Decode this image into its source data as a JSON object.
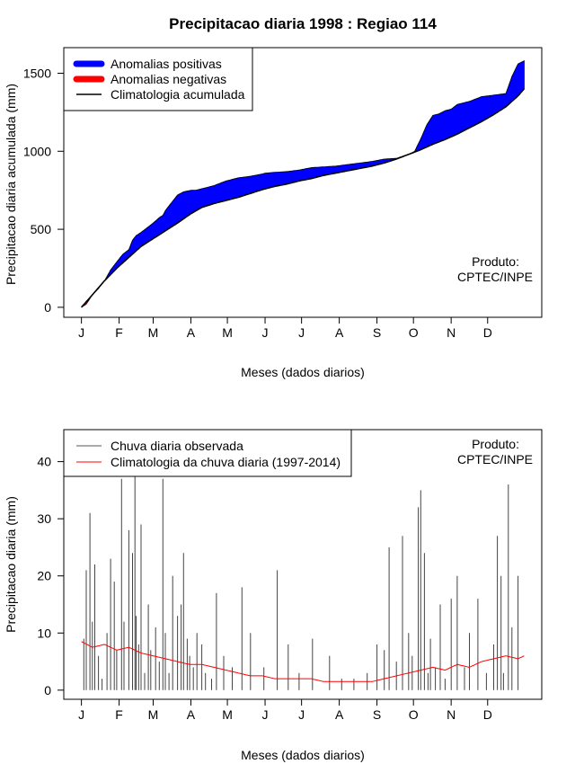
{
  "chart_data": [
    {
      "type": "area",
      "title": "Precipitacao diaria 1998 : Regiao 114",
      "xlabel": "Meses (dados diarios)",
      "ylabel": "Precipitacao diaria acumulada (mm)",
      "xlim": [
        1,
        365
      ],
      "ylim": [
        0,
        1600
      ],
      "yticks": [
        0,
        500,
        1000,
        1500
      ],
      "month_labels": [
        "J",
        "F",
        "M",
        "A",
        "M",
        "J",
        "J",
        "A",
        "S",
        "O",
        "N",
        "D"
      ],
      "month_days": [
        1,
        32,
        60,
        91,
        121,
        152,
        182,
        213,
        244,
        274,
        305,
        335
      ],
      "legend": {
        "position": "top-left",
        "entries": [
          {
            "label": "Anomalias positivas",
            "color": "#0000ff"
          },
          {
            "label": "Anomalias negativas",
            "color": "#ff0000"
          },
          {
            "label": "Climatologia acumulada",
            "color": "#000000"
          }
        ]
      },
      "annotation": [
        "Produto:",
        "CPTEC/INPE"
      ],
      "series": [
        {
          "name": "Observada acumulada",
          "day": [
            1,
            5,
            10,
            15,
            20,
            25,
            30,
            35,
            40,
            43,
            46,
            50,
            55,
            60,
            65,
            68,
            70,
            73,
            75,
            80,
            85,
            91,
            95,
            100,
            110,
            120,
            130,
            140,
            150,
            152,
            160,
            170,
            180,
            190,
            200,
            210,
            220,
            230,
            240,
            250,
            260,
            270,
            275,
            280,
            285,
            290,
            295,
            300,
            305,
            310,
            320,
            330,
            340,
            350,
            355,
            360,
            365
          ],
          "values": [
            0,
            20,
            80,
            120,
            170,
            240,
            290,
            340,
            370,
            430,
            460,
            480,
            510,
            540,
            575,
            590,
            620,
            650,
            670,
            720,
            740,
            750,
            750,
            760,
            780,
            810,
            830,
            840,
            855,
            860,
            865,
            870,
            880,
            895,
            900,
            905,
            915,
            925,
            935,
            950,
            955,
            980,
            1000,
            1080,
            1170,
            1230,
            1240,
            1260,
            1270,
            1300,
            1320,
            1350,
            1360,
            1370,
            1480,
            1560,
            1580
          ]
        },
        {
          "name": "Climatologia acumulada",
          "day": [
            1,
            10,
            20,
            30,
            40,
            50,
            60,
            70,
            80,
            91,
            100,
            110,
            120,
            130,
            140,
            150,
            160,
            170,
            180,
            190,
            200,
            210,
            220,
            230,
            240,
            250,
            260,
            270,
            280,
            290,
            300,
            310,
            320,
            330,
            340,
            350,
            360,
            365
          ],
          "values": [
            0,
            80,
            170,
            250,
            320,
            390,
            440,
            490,
            540,
            600,
            640,
            665,
            685,
            705,
            730,
            755,
            775,
            790,
            810,
            825,
            845,
            860,
            875,
            890,
            905,
            925,
            950,
            980,
            1010,
            1045,
            1075,
            1110,
            1150,
            1190,
            1235,
            1285,
            1355,
            1400
          ]
        }
      ]
    },
    {
      "type": "bar",
      "xlabel": "Meses (dados diarios)",
      "ylabel": "Precipitacao diaria (mm)",
      "xlim": [
        1,
        365
      ],
      "ylim": [
        0,
        45
      ],
      "yticks": [
        0,
        10,
        20,
        30,
        40
      ],
      "month_labels": [
        "J",
        "F",
        "M",
        "A",
        "M",
        "J",
        "J",
        "A",
        "S",
        "O",
        "N",
        "D"
      ],
      "month_days": [
        1,
        32,
        60,
        91,
        121,
        152,
        182,
        213,
        244,
        274,
        305,
        335
      ],
      "legend": {
        "position": "top-left",
        "entries": [
          {
            "label": "Chuva diaria observada",
            "color": "#555555"
          },
          {
            "label": "Climatologia da chuva diaria (1997-2014)",
            "color": "#ff0000"
          }
        ]
      },
      "annotation": [
        "Produto:",
        "CPTEC/INPE"
      ],
      "series": [
        {
          "name": "Chuva diaria observada",
          "day": [
            3,
            5,
            8,
            10,
            12,
            15,
            18,
            22,
            25,
            28,
            30,
            34,
            36,
            40,
            43,
            45,
            46,
            48,
            50,
            53,
            56,
            58,
            62,
            65,
            68,
            70,
            73,
            76,
            80,
            83,
            85,
            88,
            90,
            93,
            96,
            100,
            103,
            108,
            112,
            118,
            125,
            133,
            140,
            151,
            162,
            171,
            180,
            191,
            205,
            215,
            225,
            236,
            244,
            250,
            254,
            260,
            265,
            270,
            273,
            278,
            280,
            283,
            286,
            288,
            292,
            296,
            300,
            305,
            310,
            316,
            320,
            327,
            334,
            340,
            343,
            346,
            348,
            352,
            355,
            360
          ],
          "values": [
            9,
            21,
            31,
            12,
            22,
            6,
            2,
            10,
            23,
            19,
            7,
            37,
            12,
            28,
            24,
            38,
            13,
            8,
            29,
            3,
            15,
            7,
            11,
            5,
            37,
            10,
            3,
            20,
            13,
            15,
            24,
            9,
            6,
            4,
            10,
            8,
            3,
            2,
            17,
            6,
            4,
            18,
            10,
            4,
            21,
            8,
            3,
            9,
            6,
            2,
            2,
            3,
            8,
            7,
            25,
            5,
            27,
            10,
            6,
            32,
            35,
            24,
            3,
            9,
            4,
            15,
            2,
            16,
            20,
            4,
            10,
            16,
            3,
            8,
            27,
            20,
            3,
            36,
            11,
            20
          ]
        },
        {
          "name": "Climatologia da chuva diaria (1997-2014)",
          "day": [
            1,
            10,
            20,
            30,
            40,
            50,
            60,
            70,
            80,
            90,
            100,
            110,
            120,
            130,
            140,
            150,
            160,
            170,
            180,
            190,
            200,
            210,
            220,
            230,
            240,
            250,
            260,
            270,
            280,
            290,
            300,
            310,
            320,
            330,
            340,
            350,
            360,
            365
          ],
          "values": [
            8.5,
            7.5,
            8.0,
            7.0,
            7.5,
            6.5,
            6.0,
            5.5,
            5.0,
            4.5,
            4.5,
            4.0,
            3.5,
            3.0,
            2.5,
            2.5,
            2.0,
            2.0,
            2.0,
            2.0,
            1.5,
            1.5,
            1.5,
            1.5,
            1.5,
            2.0,
            2.5,
            3.0,
            3.5,
            4.0,
            3.5,
            4.5,
            4.0,
            5.0,
            5.5,
            6.0,
            5.5,
            6.0
          ]
        }
      ]
    }
  ]
}
